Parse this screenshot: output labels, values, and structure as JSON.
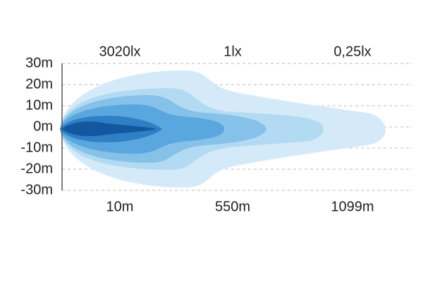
{
  "y_axis": {
    "labels": [
      "30m",
      "20m",
      "10m",
      "0m",
      "-10m",
      "-20m",
      "-30m"
    ]
  },
  "illuminance_labels": [
    "3020lx",
    "1lx",
    "0,25lx"
  ],
  "distance_labels": [
    "10m",
    "550m",
    "1099m"
  ]
}
